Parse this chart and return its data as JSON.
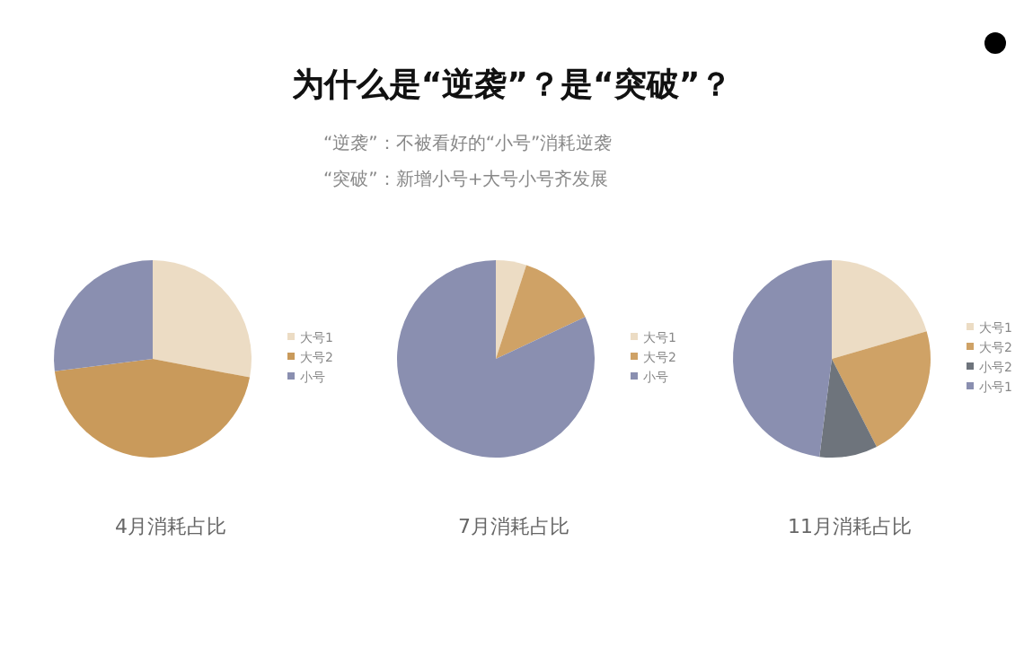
{
  "chart_data": [
    {
      "type": "pie",
      "title": "4月消耗占比",
      "categories": [
        "大号1",
        "大号2",
        "小号"
      ],
      "values": [
        28,
        45,
        27
      ],
      "colors": [
        "#ecdcc4",
        "#c99a5b",
        "#8a8fb0"
      ],
      "legend": "right",
      "annotations": [
        "为什么是“逆袭”？是“突破”？",
        "“逆袭”：不被看好的“小号”消耗逆袭",
        "“突破”：新增小号+大号小号齐发展"
      ]
    },
    {
      "type": "pie",
      "title": "7月消耗占比",
      "categories": [
        "大号1",
        "大号2",
        "小号"
      ],
      "values": [
        5,
        13,
        82
      ],
      "colors": [
        "#ecdcc4",
        "#cfa266",
        "#8a8fb0"
      ],
      "legend": "right"
    },
    {
      "type": "pie",
      "title": "11月消耗占比",
      "categories": [
        "大号1",
        "大号2",
        "小号2",
        "小号1"
      ],
      "values": [
        20.5,
        22,
        9.5,
        48
      ],
      "colors": [
        "#ecdcc4",
        "#cfa266",
        "#6e747c",
        "#8a8fb0"
      ],
      "legend": "right"
    }
  ]
}
